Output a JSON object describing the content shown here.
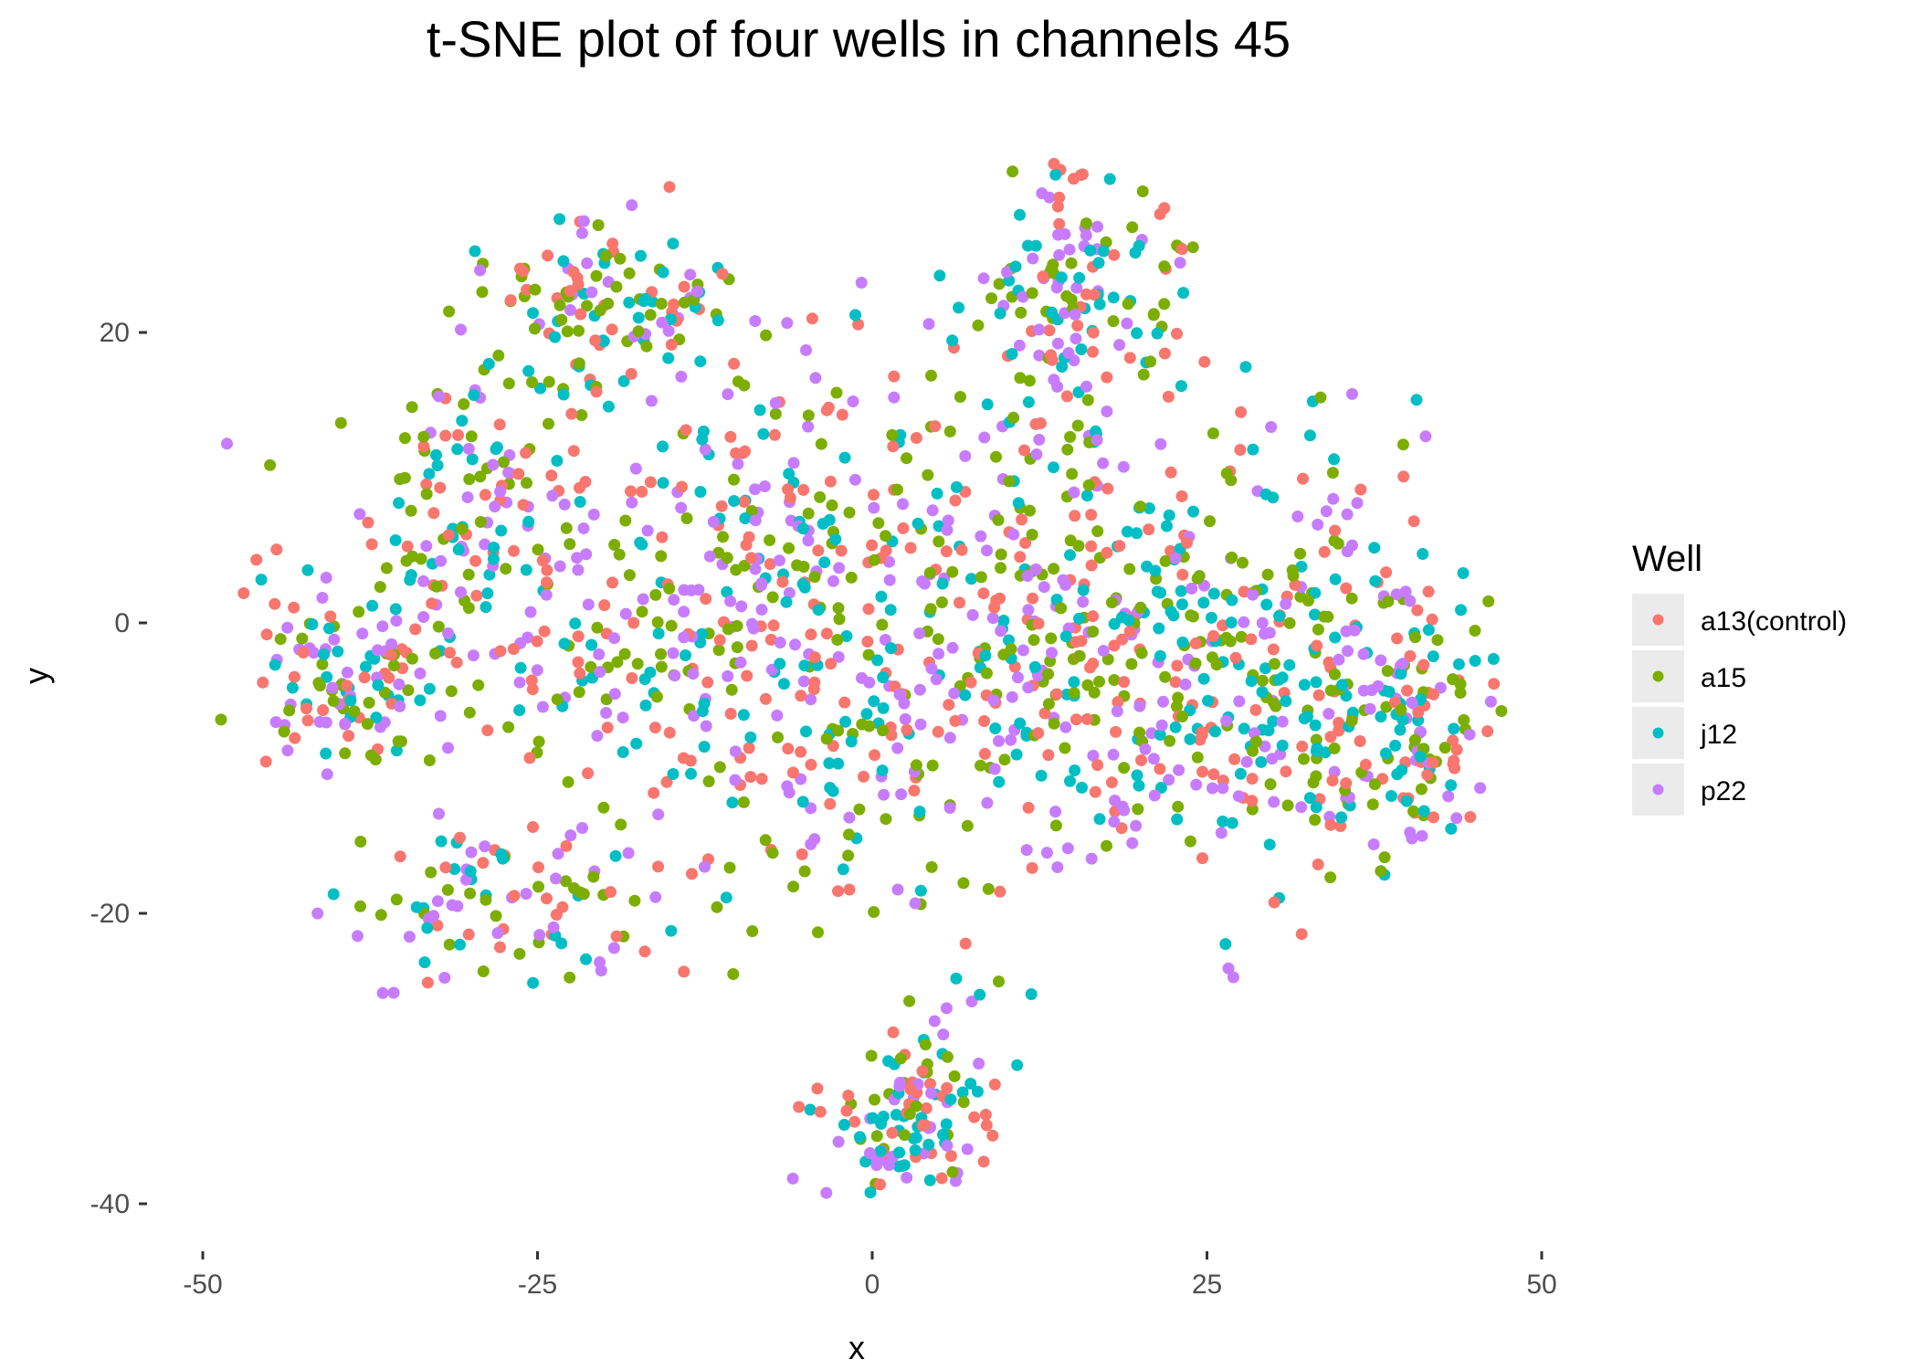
{
  "chart_data": {
    "type": "scatter",
    "title": "t-SNE plot of four wells in channels 45",
    "xlabel": "x",
    "ylabel": "y",
    "xlim": [
      -50,
      50
    ],
    "ylim": [
      -40,
      30
    ],
    "xticks": [
      -50,
      -25,
      0,
      25,
      50
    ],
    "xtick_labels": [
      "-50",
      "-25",
      "0",
      "25",
      "50"
    ],
    "yticks": [
      -40,
      -20,
      0,
      20
    ],
    "ytick_labels": [
      "-40",
      "-20",
      "0",
      "20"
    ],
    "grid": false,
    "legend_title": "Well",
    "legend_position": "right",
    "series": [
      {
        "name": "a13(control)",
        "color": "#F8766D"
      },
      {
        "name": "a15",
        "color": "#7CAE00"
      },
      {
        "name": "j12",
        "color": "#00BFC4"
      },
      {
        "name": "p22",
        "color": "#C77CFF"
      }
    ],
    "points_per_series_estimate": 500,
    "note": "Approximately 2000 points total; positions reproduced as an approximate cloud matching the visible distribution."
  }
}
